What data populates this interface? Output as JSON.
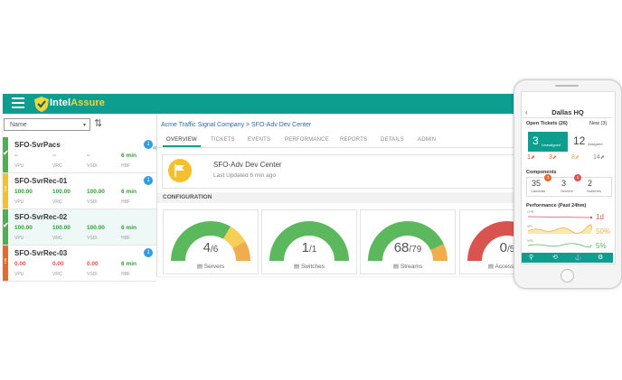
{
  "app": {
    "brand_a": "Intel",
    "brand_b": "Assure",
    "colors": {
      "teal": "#0e9e90",
      "green": "#4caf50",
      "yellow": "#f4c02d",
      "orange": "#e8692a",
      "red": "#d9534f",
      "blue": "#2f9be4"
    }
  },
  "left_panel": {
    "sort_select": "Name",
    "servers": [
      {
        "name": "SFO-SvrPacs",
        "status": "green",
        "status_icon": "✔",
        "badge": "1",
        "vals": [
          "--",
          "--",
          "--",
          "6 min"
        ],
        "labels": [
          "VPU",
          "VRC",
          "VSDI",
          "HBF"
        ]
      },
      {
        "name": "SFO-SvrRec-01",
        "status": "yellow",
        "status_icon": "!",
        "badge": "1",
        "vals": [
          "100.00",
          "100.00",
          "100.00",
          "6 min"
        ],
        "labels": [
          "VPU",
          "VRC",
          "VSDI",
          "HBF"
        ]
      },
      {
        "name": "SFO-SvrRec-02",
        "status": "green",
        "status_icon": "✔",
        "badge": "",
        "vals": [
          "100.00",
          "100.00",
          "100.00",
          "6 min"
        ],
        "labels": [
          "VPU",
          "VRC",
          "VSDI",
          "HBF"
        ]
      },
      {
        "name": "SFO-SvrRec-03",
        "status": "orange",
        "status_icon": "!",
        "badge": "1",
        "vals": [
          "0.00",
          "0.00",
          "0.00",
          "6 min"
        ],
        "labels": [
          "VPU",
          "VRC",
          "VSDI",
          "HBF"
        ]
      }
    ]
  },
  "main": {
    "breadcrumb": "Acme Traffic Signal Company > SFO-Adv Dev Center",
    "tabs": [
      "OVERVIEW",
      "TICKETS",
      "EVENTS",
      "PERFORMANCE",
      "REPORTS",
      "DETAILS",
      "ADMIN"
    ],
    "active_tab": "OVERVIEW",
    "site_name": "SFO-Adv Dev Center",
    "site_updated": "Last Updated 6 min ago",
    "config_label": "CONFIGURATION",
    "gauges": [
      {
        "value": "4",
        "total": "/6",
        "label": "Servers",
        "icon": "server-icon",
        "fractions": [
          {
            "frac": 0.667,
            "color": "#5cb85c"
          },
          {
            "frac": 0.167,
            "color": "#f6d055"
          },
          {
            "frac": 0.166,
            "color": "#f0ad4e"
          }
        ]
      },
      {
        "value": "1",
        "total": "/1",
        "label": "Switches",
        "icon": "switch-icon",
        "fractions": [
          {
            "frac": 1.0,
            "color": "#5cb85c"
          }
        ]
      },
      {
        "value": "68",
        "total": "/79",
        "label": "Streams",
        "icon": "camera-icon",
        "fractions": [
          {
            "frac": 0.86,
            "color": "#5cb85c"
          },
          {
            "frac": 0.14,
            "color": "#f0ad4e"
          }
        ]
      },
      {
        "value": "0",
        "total": "/5",
        "label": "Access Con",
        "icon": "access-icon",
        "fractions": [
          {
            "frac": 1.0,
            "color": "#d9534f"
          }
        ]
      }
    ]
  },
  "phone": {
    "title": "Dallas HQ",
    "back": "‹",
    "open_tickets": "Open Tickets (26)",
    "new_tickets": "New (3)",
    "unassigned_count": "3",
    "unassigned_label": "Unassigned",
    "assigned_count": "12",
    "assigned_label": "Assigned",
    "priorities": [
      {
        "count": "1",
        "color": "#d9534f"
      },
      {
        "count": "3",
        "color": "#e8692a"
      },
      {
        "count": "8",
        "color": "#f0ad4e"
      },
      {
        "count": "14",
        "color": "#888888"
      }
    ],
    "components_title": "Components",
    "components": [
      {
        "count": "35",
        "label": "Cameras",
        "badge": "3",
        "badge_color": "#e8692a"
      },
      {
        "count": "3",
        "label": "Servers",
        "badge": "1",
        "badge_color": "#d9534f"
      },
      {
        "count": "2",
        "label": "Switches",
        "badge": "",
        "badge_color": ""
      }
    ],
    "performance_title": "Performance (Past 24hm)",
    "perf_rows": [
      {
        "label": "CPR",
        "value": "1d",
        "color": "#d9534f"
      },
      {
        "label": "VPI",
        "value": "50%",
        "color": "#f0ad4e"
      },
      {
        "label": "VRC",
        "value": "5%",
        "color": "#5cb85c"
      }
    ]
  }
}
